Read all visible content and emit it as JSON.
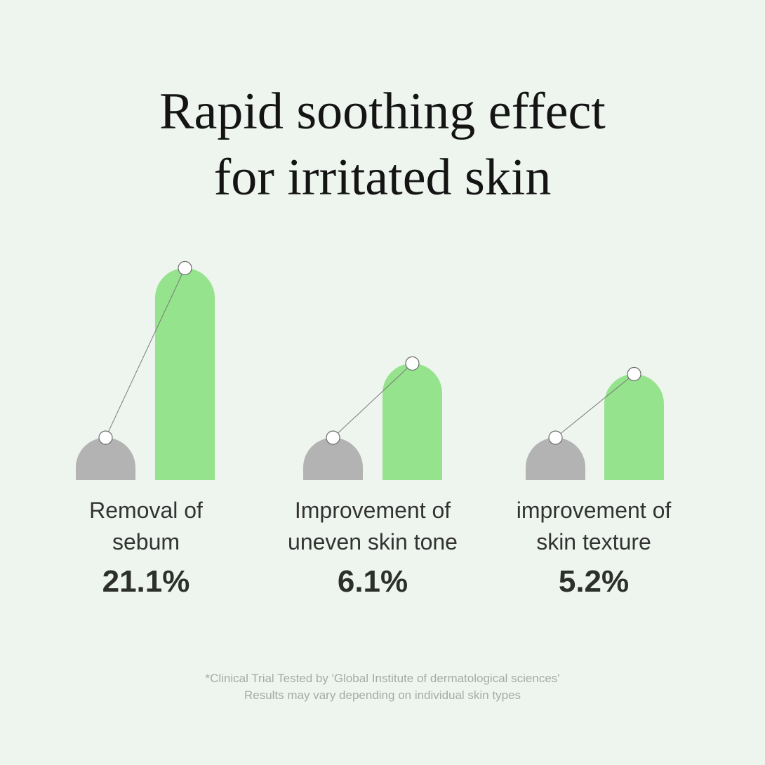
{
  "title": {
    "line1": "Rapid soothing effect",
    "line2": "for irritated skin"
  },
  "colors": {
    "background": "#eef5ef",
    "before_bar": "#b3b3b3",
    "after_bar": "#95e38c",
    "marker": "#ffffff",
    "connector": "#7a7a7a"
  },
  "chart_data": {
    "type": "bar",
    "title": "Rapid soothing effect for irritated skin",
    "groups": [
      {
        "label_lines": [
          "Removal of",
          "sebum"
        ],
        "value_label": "21.1%",
        "improvement_percent": 21.1,
        "before_relative": 0.2,
        "after_relative": 1.0
      },
      {
        "label_lines": [
          "Improvement of",
          "uneven skin tone"
        ],
        "value_label": "6.1%",
        "improvement_percent": 6.1,
        "before_relative": 0.2,
        "after_relative": 0.55
      },
      {
        "label_lines": [
          "improvement of",
          "skin texture"
        ],
        "value_label": "5.2%",
        "improvement_percent": 5.2,
        "before_relative": 0.2,
        "after_relative": 0.5
      }
    ],
    "series": [
      {
        "values": [
          0.2,
          0.2,
          0.2
        ]
      },
      {
        "values": [
          1.0,
          0.55,
          0.5
        ]
      }
    ]
  },
  "footnote": {
    "line1": "*Clinical Trial Tested by 'Global Institute of dermatological sciences'",
    "line2": "Results may vary depending on individual skin types"
  }
}
